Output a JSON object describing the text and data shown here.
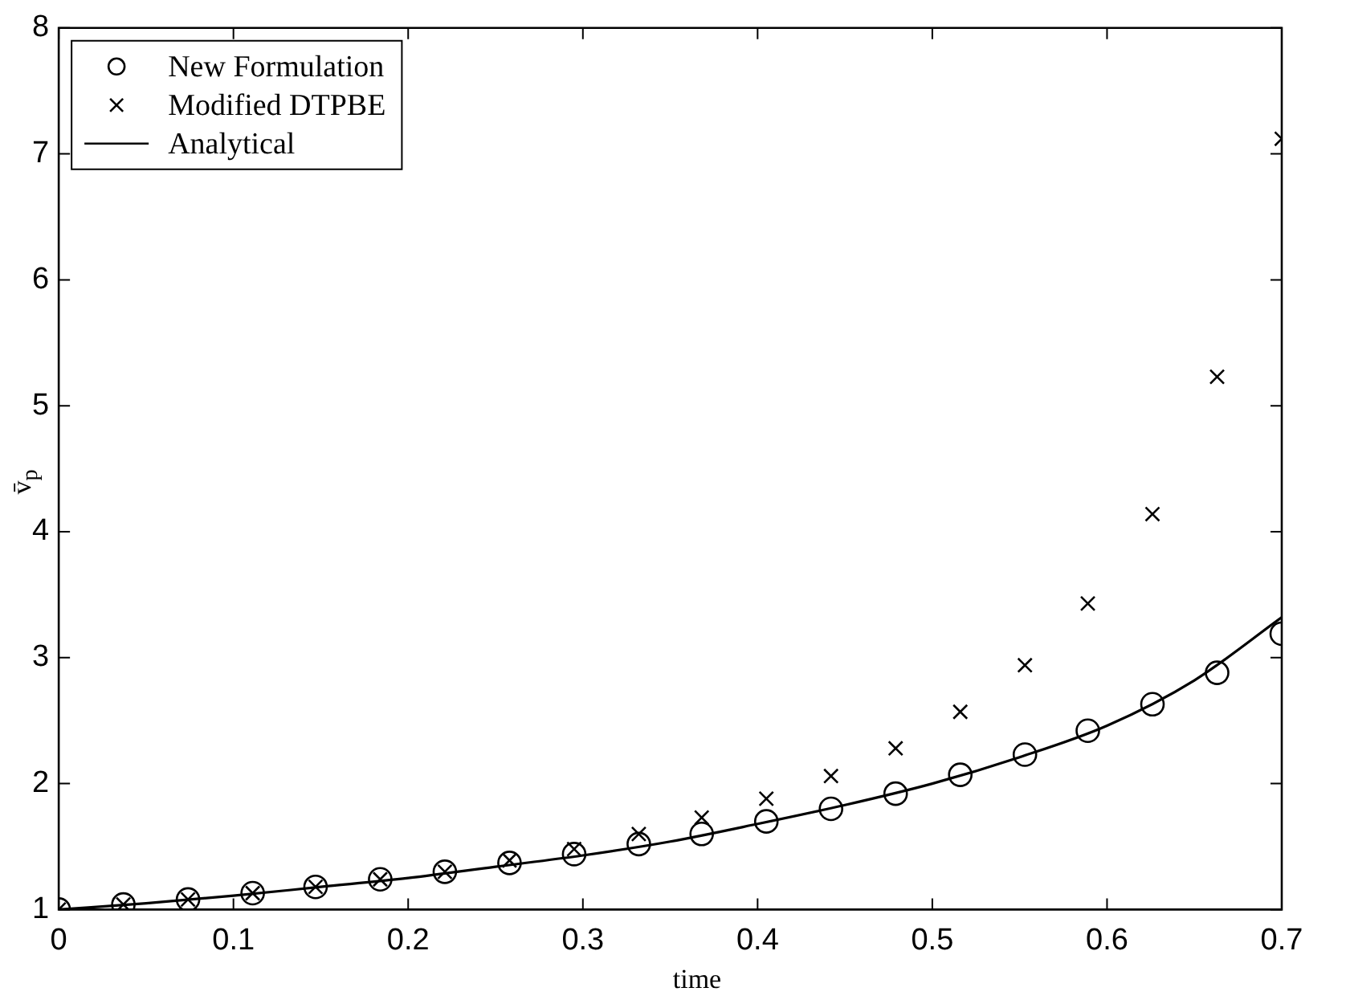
{
  "chart_data": {
    "type": "scatter",
    "xlabel": "time",
    "ylabel": "v̄$_{p}$",
    "x": [
      0,
      0.037,
      0.074,
      0.111,
      0.147,
      0.184,
      0.221,
      0.258,
      0.295,
      0.332,
      0.368,
      0.405,
      0.442,
      0.479,
      0.516,
      0.553,
      0.589,
      0.626,
      0.663,
      0.7
    ],
    "series": [
      {
        "name": "New Formulation",
        "color": "#000000",
        "marker": "circle",
        "values": [
          1,
          1.04,
          1.08,
          1.13,
          1.18,
          1.24,
          1.3,
          1.37,
          1.44,
          1.52,
          1.6,
          1.7,
          1.8,
          1.92,
          2.07,
          2.23,
          2.42,
          2.63,
          2.88,
          3.19
        ]
      },
      {
        "name": "Modified DTPBE",
        "color": "#000000",
        "marker": "cross",
        "values": [
          1,
          1.04,
          1.08,
          1.13,
          1.18,
          1.24,
          1.3,
          1.39,
          1.48,
          1.6,
          1.73,
          1.88,
          2.06,
          2.28,
          2.57,
          2.94,
          3.43,
          4.14,
          5.23,
          7.12
        ]
      },
      {
        "name": "Analytical",
        "color": "#000000",
        "type": "line",
        "marker": "none",
        "line_style": "solid",
        "x": [
          0,
          0.05,
          0.1,
          0.15,
          0.2,
          0.25,
          0.3,
          0.35,
          0.4,
          0.45,
          0.5,
          0.55,
          0.6,
          0.65,
          0.7
        ],
        "values": [
          1,
          1.05,
          1.11,
          1.18,
          1.25,
          1.34,
          1.43,
          1.54,
          1.68,
          1.83,
          2.0,
          2.21,
          2.46,
          2.82,
          3.32
        ]
      }
    ],
    "xlim": [
      0,
      0.7
    ],
    "xticks": [
      0,
      0.1,
      0.2,
      0.3,
      0.4,
      0.5,
      0.6,
      0.7
    ],
    "ylim": [
      1,
      8
    ],
    "yticks": [
      1,
      2,
      3,
      4,
      5,
      6,
      7,
      8
    ],
    "grid": false,
    "legend": "top left"
  }
}
